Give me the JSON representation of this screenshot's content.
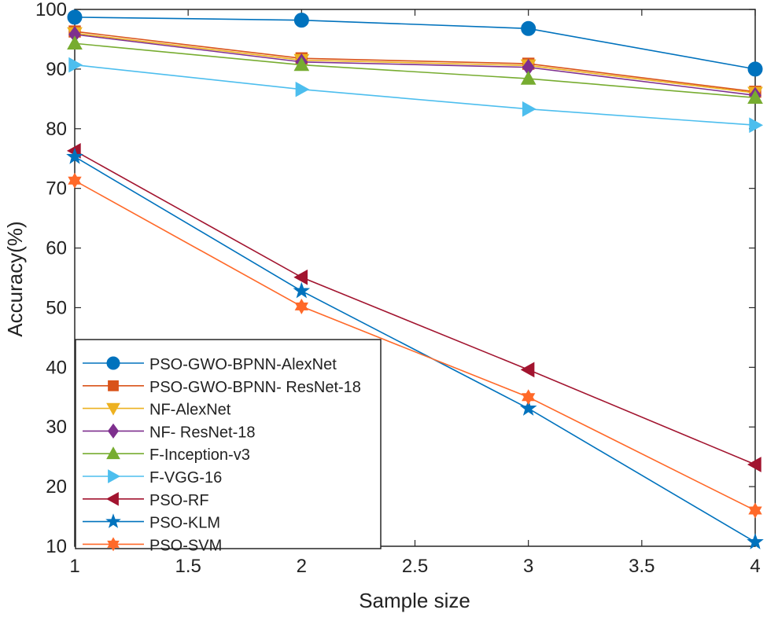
{
  "chart_data": {
    "type": "line",
    "title": "",
    "xlabel": "Sample size",
    "ylabel": "Accuracy(%)",
    "xlim": [
      1,
      4
    ],
    "ylim": [
      10,
      100
    ],
    "xticks": [
      "1",
      "1.5",
      "2",
      "2.5",
      "3",
      "3.5",
      "4"
    ],
    "xtick_values": [
      1,
      1.5,
      2,
      2.5,
      3,
      3.5,
      4
    ],
    "yticks": [
      "10",
      "20",
      "30",
      "40",
      "50",
      "60",
      "70",
      "80",
      "90",
      "100"
    ],
    "ytick_values": [
      10,
      20,
      30,
      40,
      50,
      60,
      70,
      80,
      90,
      100
    ],
    "grid": false,
    "legend_placement": "bottom-left",
    "x": [
      1,
      2,
      3,
      4
    ],
    "series": [
      {
        "name": "PSO-GWO-BPNN-AlexNet",
        "color": "#0072BD",
        "marker": "circle",
        "values": [
          98.7,
          98.2,
          96.8,
          90.0
        ]
      },
      {
        "name": "PSO-GWO-BPNN- ResNet-18",
        "color": "#D95319",
        "marker": "square",
        "values": [
          96.3,
          91.8,
          90.9,
          86.2
        ]
      },
      {
        "name": "NF-AlexNet",
        "color": "#EDB120",
        "marker": "triangle-down",
        "values": [
          96.0,
          91.5,
          90.6,
          86.0
        ]
      },
      {
        "name": "NF- ResNet-18",
        "color": "#7E2F8E",
        "marker": "diamond",
        "values": [
          95.8,
          91.2,
          90.3,
          85.6
        ]
      },
      {
        "name": "F-Inception-v3",
        "color": "#77AC30",
        "marker": "triangle-up",
        "values": [
          94.3,
          90.7,
          88.4,
          85.2
        ]
      },
      {
        "name": "F-VGG-16",
        "color": "#4DBEEE",
        "marker": "triangle-right",
        "values": [
          90.7,
          86.6,
          83.3,
          80.6
        ]
      },
      {
        "name": "PSO-RF",
        "color": "#A2142F",
        "marker": "triangle-left",
        "values": [
          76.3,
          55.1,
          39.6,
          23.7
        ]
      },
      {
        "name": "PSO-KLM",
        "color": "#0072BD",
        "marker": "pentagram",
        "values": [
          75.3,
          52.8,
          33.1,
          10.7
        ]
      },
      {
        "name": "PSO-SVM",
        "color": "#FF6929",
        "marker": "hexagram",
        "values": [
          71.3,
          50.2,
          35.0,
          16.0
        ]
      }
    ]
  }
}
